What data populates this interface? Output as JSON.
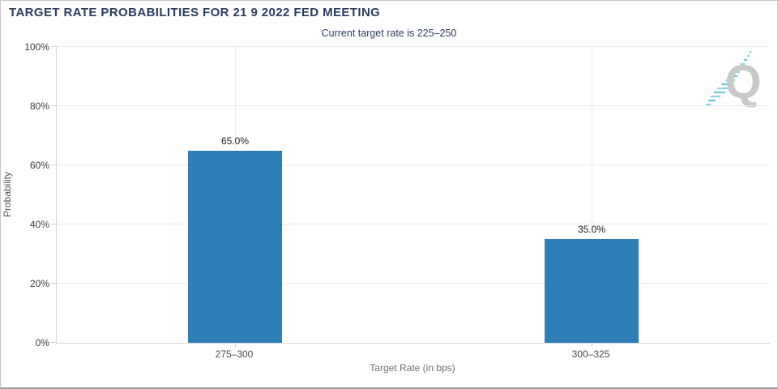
{
  "header": {
    "title": "TARGET RATE PROBABILITIES FOR 21 9 2022 FED MEETING",
    "subtitle": "Current target rate is 225–250"
  },
  "chart_data": {
    "type": "bar",
    "title": "TARGET RATE PROBABILITIES FOR 21 9 2022 FED MEETING",
    "subtitle": "Current target rate is 225–250",
    "categories": [
      "275–300",
      "300–325"
    ],
    "values": [
      65.0,
      35.0
    ],
    "value_labels": [
      "65.0%",
      "35.0%"
    ],
    "xlabel": "Target Rate (in bps)",
    "ylabel": "Probability",
    "ylim": [
      0,
      100
    ],
    "yticks": [
      "0%",
      "20%",
      "40%",
      "60%",
      "80%",
      "100%"
    ],
    "grid": true,
    "legend": "none",
    "bar_color": "#2e7fb8"
  },
  "colors": {
    "title_navy": "#2c3c5e",
    "bar_blue": "#2e7fb8",
    "logo_gray": "#c9c9c9",
    "logo_teal": "#7fd0e0",
    "gridline": "#ebebeb"
  },
  "logo": {
    "letter": "Q"
  }
}
